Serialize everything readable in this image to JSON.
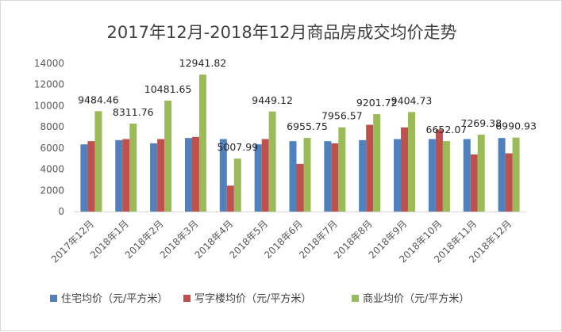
{
  "chart_data": {
    "type": "bar",
    "title": "2017年12月-2018年12月商品房成交均价走势",
    "xlabel": "",
    "ylabel": "",
    "ylim": [
      0,
      14000
    ],
    "yticks": [
      0,
      2000,
      4000,
      6000,
      8000,
      10000,
      12000,
      14000
    ],
    "grid": false,
    "legend_position": "bottom",
    "categories": [
      "2017年12月",
      "2018年1月",
      "2018年2月",
      "2018年3月",
      "2018年4月",
      "2018年5月",
      "2018年6月",
      "2018年7月",
      "2018年8月",
      "2018年9月",
      "2018年10月",
      "2018年11月",
      "2018年12月"
    ],
    "series": [
      {
        "name": "住宅均价（元/平方米）",
        "color": "#4f81bd",
        "values": [
          6350,
          6750,
          6450,
          6950,
          6850,
          6350,
          6650,
          6650,
          6750,
          6850,
          6850,
          6850,
          6950
        ]
      },
      {
        "name": "写字楼均价（元/平方米）",
        "color": "#c0504d",
        "values": [
          6650,
          6850,
          6850,
          7050,
          2450,
          6850,
          4500,
          6450,
          8200,
          7950,
          7750,
          5400,
          5500
        ]
      },
      {
        "name": "商业均价（元/平方米）",
        "color": "#9bbb59",
        "values": [
          9484.46,
          8311.76,
          10481.65,
          12941.82,
          5007.99,
          9449.12,
          6955.75,
          7956.57,
          9201.72,
          9404.73,
          6652.07,
          7269.38,
          6990.93
        ],
        "data_labels": [
          "9484.46",
          "8311.76",
          "10481.65",
          "12941.82",
          "5007.99",
          "9449.12",
          "6955.75",
          "7956.57",
          "9201.72",
          "9404.73",
          "6652.07",
          "7269.38",
          "6990.93"
        ]
      }
    ]
  }
}
